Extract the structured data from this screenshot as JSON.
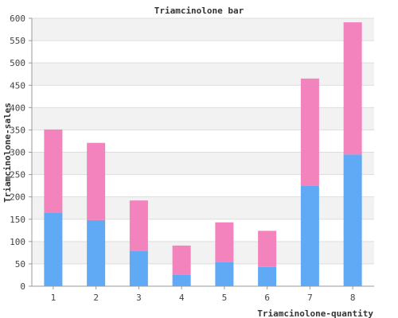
{
  "chart_data": {
    "type": "bar",
    "stacked": true,
    "title": "Triamcinolone bar",
    "xlabel": "Triamcinolone-quantity",
    "ylabel": "Triamcinolone-sales",
    "categories": [
      "1",
      "2",
      "3",
      "4",
      "5",
      "6",
      "7",
      "8"
    ],
    "series": [
      {
        "values": [
          165,
          148,
          79,
          25,
          54,
          43,
          225,
          295
        ],
        "color": "#60a9f5"
      },
      {
        "values": [
          186,
          173,
          113,
          66,
          89,
          81,
          240,
          296
        ],
        "color": "#f283bd"
      }
    ],
    "ylim": [
      0,
      600
    ],
    "yticks": [
      0,
      50,
      100,
      150,
      200,
      250,
      300,
      350,
      400,
      450,
      500,
      550,
      600
    ],
    "grid": true,
    "band_colors": [
      "#ffffff",
      "#f2f2f2"
    ]
  }
}
